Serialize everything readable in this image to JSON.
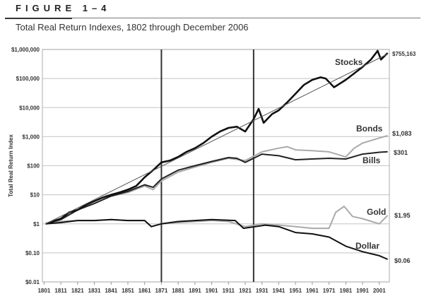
{
  "figure_label": "FIGURE 1–4",
  "chart_data": {
    "type": "line",
    "title": "Total Real Return Indexes, 1802 through December 2006",
    "xlabel": "",
    "ylabel": "Total Real Return Index",
    "yscale": "log",
    "xlim": [
      1800,
      2007
    ],
    "ylim": [
      0.01,
      1000000
    ],
    "grid": "horizontal",
    "x_ticks": [
      "1801",
      "1811",
      "1821",
      "1831",
      "1841",
      "1851",
      "1861",
      "1871",
      "1881",
      "1891",
      "1901",
      "1911",
      "1921",
      "1931",
      "1941",
      "1951",
      "1961",
      "1971",
      "1981",
      "1991",
      "2001"
    ],
    "y_ticks": [
      {
        "value": 1000000,
        "label": "$1,000,000"
      },
      {
        "value": 100000,
        "label": "$100,000"
      },
      {
        "value": 10000,
        "label": "$10,000"
      },
      {
        "value": 1000,
        "label": "$1,000"
      },
      {
        "value": 100,
        "label": "$100"
      },
      {
        "value": 10,
        "label": "$10"
      },
      {
        "value": 1,
        "label": "$1"
      },
      {
        "value": 0.1,
        "label": "$0.10"
      },
      {
        "value": 0.01,
        "label": "$0.01"
      }
    ],
    "vertical_markers": [
      1871,
      1926
    ],
    "trend_line": {
      "x": [
        1802,
        2006
      ],
      "y": [
        1,
        700000
      ]
    },
    "series": [
      {
        "name": "Stocks",
        "end_label": "$755,163",
        "color": "#111111",
        "x": [
          1802,
          1806,
          1811,
          1816,
          1821,
          1826,
          1831,
          1836,
          1841,
          1846,
          1851,
          1856,
          1861,
          1866,
          1871,
          1876,
          1881,
          1886,
          1891,
          1896,
          1901,
          1906,
          1911,
          1916,
          1921,
          1926,
          1929,
          1932,
          1937,
          1941,
          1946,
          1951,
          1956,
          1961,
          1966,
          1969,
          1974,
          1981,
          1986,
          1991,
          1996,
          2000,
          2002,
          2006
        ],
        "y": [
          1,
          1.2,
          1.5,
          2.5,
          3,
          4.5,
          6,
          8,
          10,
          12,
          15,
          20,
          40,
          70,
          130,
          150,
          200,
          300,
          400,
          600,
          1000,
          1500,
          2000,
          2200,
          1500,
          4000,
          9000,
          3000,
          6000,
          8000,
          15000,
          30000,
          60000,
          90000,
          110000,
          100000,
          50000,
          90000,
          150000,
          250000,
          450000,
          900000,
          450000,
          755163
        ]
      },
      {
        "name": "Bonds",
        "end_label": "$1,083",
        "color": "#aaaaaa",
        "x": [
          1802,
          1811,
          1821,
          1831,
          1841,
          1851,
          1861,
          1866,
          1871,
          1881,
          1891,
          1901,
          1911,
          1921,
          1931,
          1941,
          1946,
          1951,
          1961,
          1971,
          1981,
          1986,
          1991,
          2001,
          2006
        ],
        "y": [
          1,
          1.4,
          3,
          5,
          9,
          12,
          20,
          15,
          30,
          60,
          90,
          130,
          180,
          150,
          300,
          400,
          450,
          350,
          330,
          300,
          200,
          400,
          600,
          900,
          1083
        ]
      },
      {
        "name": "Bills",
        "end_label": "$301",
        "color": "#222222",
        "x": [
          1802,
          1811,
          1821,
          1831,
          1841,
          1851,
          1861,
          1866,
          1871,
          1881,
          1891,
          1901,
          1911,
          1916,
          1921,
          1931,
          1941,
          1951,
          1961,
          1971,
          1981,
          1991,
          2001,
          2006
        ],
        "y": [
          1,
          1.4,
          3,
          5,
          9,
          13,
          22,
          18,
          35,
          70,
          100,
          140,
          190,
          180,
          130,
          250,
          220,
          160,
          170,
          180,
          170,
          250,
          290,
          301
        ]
      },
      {
        "name": "Gold",
        "end_label": "$1.95",
        "color": "#aaaaaa",
        "x": [
          1802,
          1811,
          1821,
          1831,
          1841,
          1851,
          1861,
          1865,
          1871,
          1881,
          1891,
          1901,
          1911,
          1921,
          1931,
          1941,
          1951,
          1961,
          1971,
          1975,
          1980,
          1985,
          1991,
          2001,
          2006
        ],
        "y": [
          1,
          1.2,
          1.3,
          1.3,
          1.4,
          1.3,
          1.3,
          0.8,
          1.0,
          1.1,
          1.2,
          1.3,
          1.2,
          0.8,
          1.0,
          0.9,
          0.8,
          0.7,
          0.7,
          2.5,
          4,
          1.8,
          1.5,
          1.0,
          1.95
        ]
      },
      {
        "name": "Dollar",
        "end_label": "$0.06",
        "color": "#111111",
        "x": [
          1802,
          1811,
          1821,
          1831,
          1841,
          1851,
          1861,
          1865,
          1871,
          1881,
          1891,
          1901,
          1915,
          1920,
          1933,
          1941,
          1951,
          1961,
          1971,
          1981,
          1991,
          2001,
          2006
        ],
        "y": [
          1,
          1.1,
          1.3,
          1.3,
          1.4,
          1.3,
          1.3,
          0.8,
          1.0,
          1.2,
          1.3,
          1.4,
          1.3,
          0.7,
          0.9,
          0.8,
          0.5,
          0.45,
          0.35,
          0.17,
          0.11,
          0.08,
          0.06
        ]
      }
    ]
  }
}
